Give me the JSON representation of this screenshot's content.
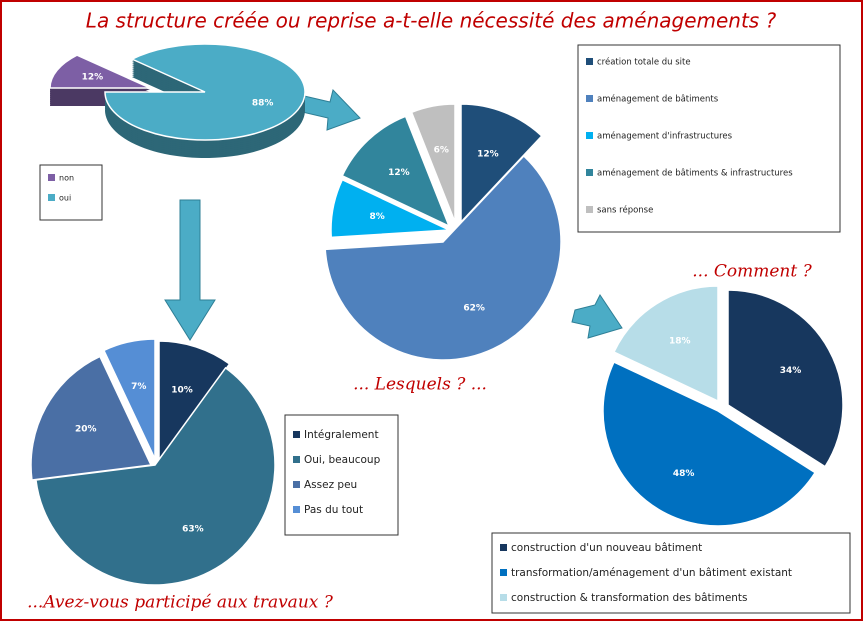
{
  "title": "La structure créée ou reprise a-t-elle nécessité des aménagements ?",
  "chart_data": [
    {
      "type": "pie",
      "categories": [
        "non",
        "oui"
      ],
      "values": [
        12,
        88
      ],
      "value_labels": [
        "12%",
        "88%"
      ],
      "colors": [
        "#7d5fa5",
        "#4bacc6"
      ]
    },
    {
      "type": "pie",
      "title": "... Lesquels ? ...",
      "categories": [
        "création totale du site",
        "aménagement de bâtiments",
        "aménagement d'infrastructures",
        "aménagement de bâtiments & infrastructures",
        "sans réponse"
      ],
      "values": [
        12,
        62,
        8,
        12,
        6
      ],
      "value_labels": [
        "12%",
        "62%",
        "8%",
        "12%",
        "6%"
      ],
      "colors": [
        "#1f4e79",
        "#4f81bd",
        "#00b0f0",
        "#31859c",
        "#bfbfbf"
      ]
    },
    {
      "type": "pie",
      "title": "... Comment ?",
      "categories": [
        "construction d'un nouveau bâtiment",
        "transformation/aménagement d'un bâtiment existant",
        "construction & transformation des bâtiments"
      ],
      "values": [
        34,
        48,
        18
      ],
      "value_labels": [
        "34%",
        "48%",
        "18%"
      ],
      "colors": [
        "#17375e",
        "#0070c0",
        "#b7dde8"
      ]
    },
    {
      "type": "pie",
      "title": "...Avez-vous participé aux travaux ?",
      "categories": [
        "Intégralement",
        "Oui, beaucoup",
        "Assez peu",
        "Pas du tout"
      ],
      "values": [
        10,
        63,
        20,
        7
      ],
      "value_labels": [
        "10%",
        "63%",
        "20%",
        "7%"
      ],
      "colors": [
        "#17375e",
        "#31708c",
        "#4a6fa5",
        "#558ed5"
      ]
    }
  ]
}
